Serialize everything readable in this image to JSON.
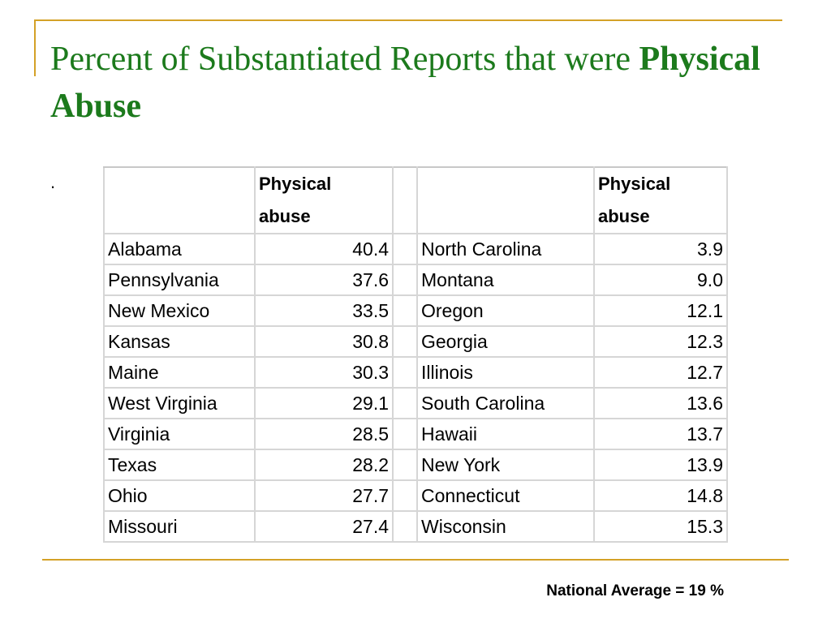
{
  "title": {
    "prefix": "Percent of Substantiated Reports that were ",
    "bold": "Physical Abuse"
  },
  "bullet": ".",
  "table": {
    "header_line1": "Physical",
    "header_line2": "abuse",
    "rows": [
      {
        "state_left": "Alabama",
        "value_left": "40.4",
        "state_right": "North Carolina",
        "value_right": "3.9"
      },
      {
        "state_left": "Pennsylvania",
        "value_left": "37.6",
        "state_right": "Montana",
        "value_right": "9.0"
      },
      {
        "state_left": "New Mexico",
        "value_left": "33.5",
        "state_right": "Oregon",
        "value_right": "12.1"
      },
      {
        "state_left": "Kansas",
        "value_left": "30.8",
        "state_right": "Georgia",
        "value_right": "12.3"
      },
      {
        "state_left": "Maine",
        "value_left": "30.3",
        "state_right": "Illinois",
        "value_right": "12.7"
      },
      {
        "state_left": "West Virginia",
        "value_left": "29.1",
        "state_right": "South Carolina",
        "value_right": "13.6"
      },
      {
        "state_left": "Virginia",
        "value_left": "28.5",
        "state_right": "Hawaii",
        "value_right": "13.7"
      },
      {
        "state_left": "Texas",
        "value_left": "28.2",
        "state_right": "New York",
        "value_right": "13.9"
      },
      {
        "state_left": "Ohio",
        "value_left": "27.7",
        "state_right": "Connecticut",
        "value_right": "14.8"
      },
      {
        "state_left": "Missouri",
        "value_left": "27.4",
        "state_right": "Wisconsin",
        "value_right": "15.3"
      }
    ]
  },
  "footnote": "National Average = 19 %",
  "colors": {
    "title": "#1c7a1c",
    "frame": "#d4a127",
    "grid": "#d6d6d6"
  }
}
